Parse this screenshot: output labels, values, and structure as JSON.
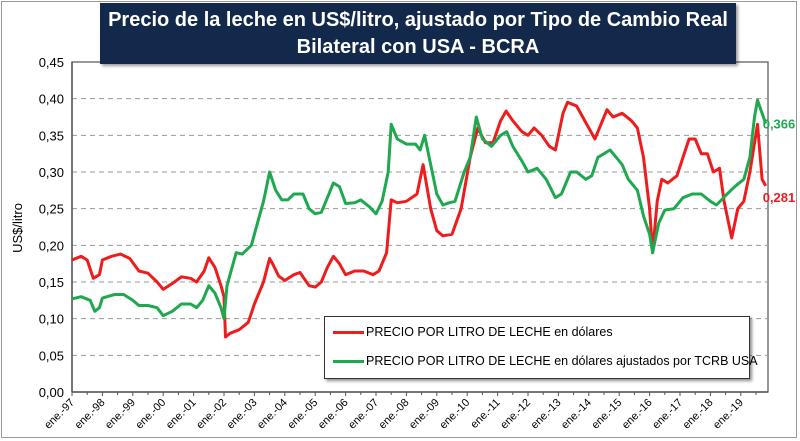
{
  "chart_data": {
    "type": "line",
    "title": "Precio de la leche en US$/litro, ajustado por Tipo de Cambio Real Bilateral con USA - BCRA",
    "title_lines": [
      "Precio de la leche en US$/litro, ajustado por Tipo de Cambio Real",
      "Bilateral con USA - BCRA"
    ],
    "ylabel": "US$/litro",
    "xlabel": "",
    "ylim": [
      0,
      0.45
    ],
    "yticks": [
      "0,00",
      "0,05",
      "0,10",
      "0,15",
      "0,20",
      "0,25",
      "0,30",
      "0,35",
      "0,40",
      "0,45"
    ],
    "xlim": [
      1997,
      2019.85
    ],
    "xticks": [
      "ene.-97",
      "ene.-98",
      "ene.-99",
      "ene.-00",
      "ene.-01",
      "ene.-02",
      "ene.-03",
      "ene.-04",
      "ene.-05",
      "ene.-06",
      "ene.-07",
      "ene.-08",
      "ene.-09",
      "ene.-10",
      "ene.-11",
      "ene.-12",
      "ene.-13",
      "ene.-14",
      "ene.-15",
      "ene.-16",
      "ene.-17",
      "ene.-18",
      "ene.-19"
    ],
    "grid": "horizontal-dashed",
    "legend_position": "bottom-right",
    "series": [
      {
        "name": "PRECIO POR LITRO DE LECHE en dólares",
        "color": "#ee1c1c",
        "end_label": "0,281",
        "points": [
          [
            1997.0,
            0.18
          ],
          [
            1997.3,
            0.185
          ],
          [
            1997.5,
            0.18
          ],
          [
            1997.7,
            0.155
          ],
          [
            1997.9,
            0.16
          ],
          [
            1998.0,
            0.18
          ],
          [
            1998.3,
            0.185
          ],
          [
            1998.6,
            0.188
          ],
          [
            1998.9,
            0.182
          ],
          [
            1999.2,
            0.165
          ],
          [
            1999.5,
            0.162
          ],
          [
            1999.8,
            0.15
          ],
          [
            2000.0,
            0.14
          ],
          [
            2000.3,
            0.148
          ],
          [
            2000.6,
            0.157
          ],
          [
            2000.9,
            0.155
          ],
          [
            2001.1,
            0.15
          ],
          [
            2001.35,
            0.165
          ],
          [
            2001.5,
            0.183
          ],
          [
            2001.7,
            0.17
          ],
          [
            2001.9,
            0.145
          ],
          [
            2002.0,
            0.13
          ],
          [
            2002.05,
            0.075
          ],
          [
            2002.2,
            0.08
          ],
          [
            2002.5,
            0.085
          ],
          [
            2002.8,
            0.095
          ],
          [
            2003.0,
            0.12
          ],
          [
            2003.3,
            0.15
          ],
          [
            2003.5,
            0.182
          ],
          [
            2003.6,
            0.175
          ],
          [
            2003.8,
            0.158
          ],
          [
            2004.0,
            0.152
          ],
          [
            2004.3,
            0.16
          ],
          [
            2004.5,
            0.163
          ],
          [
            2004.8,
            0.145
          ],
          [
            2005.0,
            0.143
          ],
          [
            2005.2,
            0.15
          ],
          [
            2005.4,
            0.17
          ],
          [
            2005.6,
            0.185
          ],
          [
            2005.8,
            0.175
          ],
          [
            2006.0,
            0.16
          ],
          [
            2006.3,
            0.165
          ],
          [
            2006.6,
            0.165
          ],
          [
            2006.9,
            0.16
          ],
          [
            2007.1,
            0.165
          ],
          [
            2007.35,
            0.19
          ],
          [
            2007.5,
            0.262
          ],
          [
            2007.7,
            0.258
          ],
          [
            2008.0,
            0.26
          ],
          [
            2008.35,
            0.27
          ],
          [
            2008.55,
            0.31
          ],
          [
            2008.8,
            0.25
          ],
          [
            2009.0,
            0.22
          ],
          [
            2009.2,
            0.213
          ],
          [
            2009.5,
            0.215
          ],
          [
            2009.8,
            0.25
          ],
          [
            2010.1,
            0.32
          ],
          [
            2010.35,
            0.36
          ],
          [
            2010.6,
            0.34
          ],
          [
            2010.85,
            0.34
          ],
          [
            2011.1,
            0.37
          ],
          [
            2011.28,
            0.383
          ],
          [
            2011.5,
            0.37
          ],
          [
            2011.8,
            0.355
          ],
          [
            2012.0,
            0.35
          ],
          [
            2012.2,
            0.36
          ],
          [
            2012.45,
            0.35
          ],
          [
            2012.7,
            0.335
          ],
          [
            2012.9,
            0.33
          ],
          [
            2013.15,
            0.38
          ],
          [
            2013.3,
            0.395
          ],
          [
            2013.6,
            0.39
          ],
          [
            2013.8,
            0.375
          ],
          [
            2014.0,
            0.36
          ],
          [
            2014.2,
            0.345
          ],
          [
            2014.4,
            0.365
          ],
          [
            2014.6,
            0.385
          ],
          [
            2014.8,
            0.375
          ],
          [
            2015.1,
            0.38
          ],
          [
            2015.4,
            0.37
          ],
          [
            2015.6,
            0.36
          ],
          [
            2015.8,
            0.32
          ],
          [
            2016.0,
            0.25
          ],
          [
            2016.1,
            0.19
          ],
          [
            2016.25,
            0.26
          ],
          [
            2016.4,
            0.29
          ],
          [
            2016.6,
            0.285
          ],
          [
            2016.9,
            0.295
          ],
          [
            2017.1,
            0.32
          ],
          [
            2017.3,
            0.345
          ],
          [
            2017.5,
            0.345
          ],
          [
            2017.7,
            0.325
          ],
          [
            2017.9,
            0.325
          ],
          [
            2018.1,
            0.3
          ],
          [
            2018.3,
            0.305
          ],
          [
            2018.45,
            0.26
          ],
          [
            2018.7,
            0.21
          ],
          [
            2018.9,
            0.25
          ],
          [
            2019.1,
            0.26
          ],
          [
            2019.3,
            0.3
          ],
          [
            2019.55,
            0.365
          ],
          [
            2019.7,
            0.29
          ],
          [
            2019.82,
            0.281
          ]
        ]
      },
      {
        "name": "PRECIO POR LITRO DE LECHE en dólares ajustados por TCRB USA",
        "color": "#1fa84f",
        "end_label": "0,366",
        "points": [
          [
            1997.0,
            0.127
          ],
          [
            1997.3,
            0.13
          ],
          [
            1997.6,
            0.125
          ],
          [
            1997.75,
            0.11
          ],
          [
            1997.9,
            0.115
          ],
          [
            1998.0,
            0.128
          ],
          [
            1998.4,
            0.133
          ],
          [
            1998.7,
            0.133
          ],
          [
            1999.0,
            0.125
          ],
          [
            1999.2,
            0.118
          ],
          [
            1999.5,
            0.118
          ],
          [
            1999.8,
            0.115
          ],
          [
            2000.0,
            0.104
          ],
          [
            2000.3,
            0.11
          ],
          [
            2000.6,
            0.12
          ],
          [
            2000.9,
            0.12
          ],
          [
            2001.1,
            0.115
          ],
          [
            2001.3,
            0.125
          ],
          [
            2001.5,
            0.145
          ],
          [
            2001.7,
            0.135
          ],
          [
            2001.9,
            0.115
          ],
          [
            2002.0,
            0.1
          ],
          [
            2002.1,
            0.145
          ],
          [
            2002.3,
            0.175
          ],
          [
            2002.4,
            0.19
          ],
          [
            2002.6,
            0.188
          ],
          [
            2002.9,
            0.2
          ],
          [
            2003.1,
            0.23
          ],
          [
            2003.3,
            0.26
          ],
          [
            2003.5,
            0.3
          ],
          [
            2003.7,
            0.275
          ],
          [
            2003.9,
            0.262
          ],
          [
            2004.1,
            0.262
          ],
          [
            2004.3,
            0.27
          ],
          [
            2004.6,
            0.27
          ],
          [
            2004.8,
            0.25
          ],
          [
            2005.0,
            0.243
          ],
          [
            2005.2,
            0.245
          ],
          [
            2005.4,
            0.265
          ],
          [
            2005.6,
            0.285
          ],
          [
            2005.8,
            0.28
          ],
          [
            2006.0,
            0.257
          ],
          [
            2006.3,
            0.258
          ],
          [
            2006.5,
            0.262
          ],
          [
            2006.8,
            0.252
          ],
          [
            2007.0,
            0.243
          ],
          [
            2007.2,
            0.26
          ],
          [
            2007.4,
            0.3
          ],
          [
            2007.5,
            0.365
          ],
          [
            2007.7,
            0.345
          ],
          [
            2008.0,
            0.338
          ],
          [
            2008.3,
            0.338
          ],
          [
            2008.45,
            0.33
          ],
          [
            2008.6,
            0.35
          ],
          [
            2008.8,
            0.31
          ],
          [
            2009.0,
            0.27
          ],
          [
            2009.2,
            0.255
          ],
          [
            2009.4,
            0.258
          ],
          [
            2009.6,
            0.26
          ],
          [
            2009.9,
            0.3
          ],
          [
            2010.1,
            0.32
          ],
          [
            2010.3,
            0.375
          ],
          [
            2010.5,
            0.345
          ],
          [
            2010.8,
            0.335
          ],
          [
            2011.1,
            0.35
          ],
          [
            2011.3,
            0.355
          ],
          [
            2011.5,
            0.335
          ],
          [
            2011.8,
            0.315
          ],
          [
            2012.0,
            0.3
          ],
          [
            2012.3,
            0.305
          ],
          [
            2012.6,
            0.29
          ],
          [
            2012.9,
            0.265
          ],
          [
            2013.1,
            0.27
          ],
          [
            2013.4,
            0.3
          ],
          [
            2013.6,
            0.3
          ],
          [
            2013.9,
            0.29
          ],
          [
            2014.1,
            0.295
          ],
          [
            2014.3,
            0.32
          ],
          [
            2014.5,
            0.325
          ],
          [
            2014.7,
            0.33
          ],
          [
            2014.9,
            0.32
          ],
          [
            2015.1,
            0.31
          ],
          [
            2015.3,
            0.29
          ],
          [
            2015.6,
            0.275
          ],
          [
            2015.8,
            0.24
          ],
          [
            2016.0,
            0.215
          ],
          [
            2016.1,
            0.19
          ],
          [
            2016.3,
            0.23
          ],
          [
            2016.5,
            0.248
          ],
          [
            2016.8,
            0.25
          ],
          [
            2017.1,
            0.265
          ],
          [
            2017.4,
            0.27
          ],
          [
            2017.7,
            0.27
          ],
          [
            2018.0,
            0.26
          ],
          [
            2018.2,
            0.255
          ],
          [
            2018.5,
            0.268
          ],
          [
            2018.8,
            0.28
          ],
          [
            2019.1,
            0.29
          ],
          [
            2019.3,
            0.32
          ],
          [
            2019.45,
            0.375
          ],
          [
            2019.55,
            0.398
          ],
          [
            2019.7,
            0.38
          ],
          [
            2019.82,
            0.366
          ]
        ]
      }
    ]
  }
}
